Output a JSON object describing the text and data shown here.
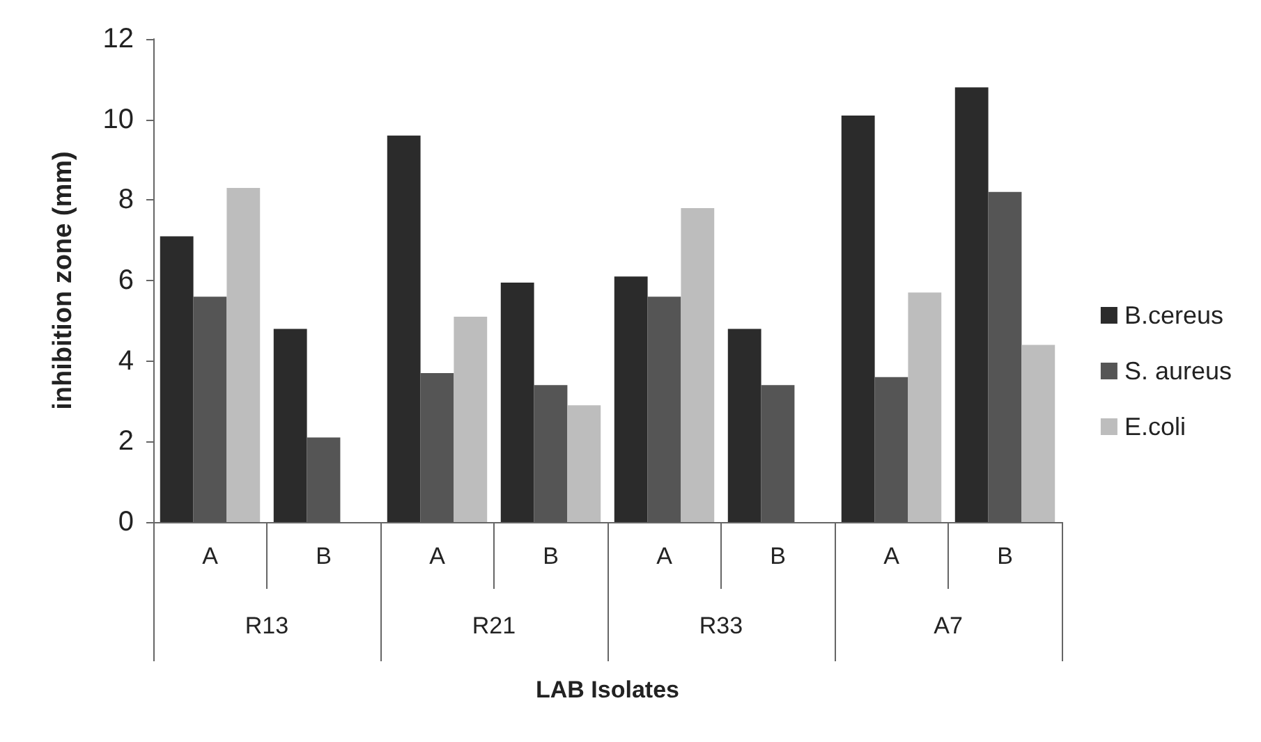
{
  "chart_data": {
    "type": "bar",
    "xlabel": "LAB Isolates",
    "ylabel": "inhibition zone (mm)",
    "categories": [
      "A",
      "B",
      "A",
      "B",
      "A",
      "B",
      "A",
      "B"
    ],
    "annotations": [
      "R13",
      "R21",
      "R33",
      "A7"
    ],
    "series": [
      {
        "name": "B.cereus",
        "color": "#2b2b2b",
        "values": [
          7.1,
          4.8,
          9.6,
          5.95,
          6.1,
          4.8,
          10.1,
          10.8
        ]
      },
      {
        "name": "S. aureus",
        "color": "#555555",
        "values": [
          5.6,
          2.1,
          3.7,
          3.4,
          5.6,
          3.4,
          3.6,
          8.2
        ]
      },
      {
        "name": "E.coli",
        "color": "#bdbdbd",
        "values": [
          8.3,
          null,
          5.1,
          2.9,
          7.8,
          null,
          5.7,
          4.4
        ]
      }
    ],
    "ylim": [
      0,
      12
    ],
    "yticks": [
      0,
      2,
      4,
      6,
      8,
      10,
      12
    ],
    "grid": false,
    "legend": "right"
  }
}
